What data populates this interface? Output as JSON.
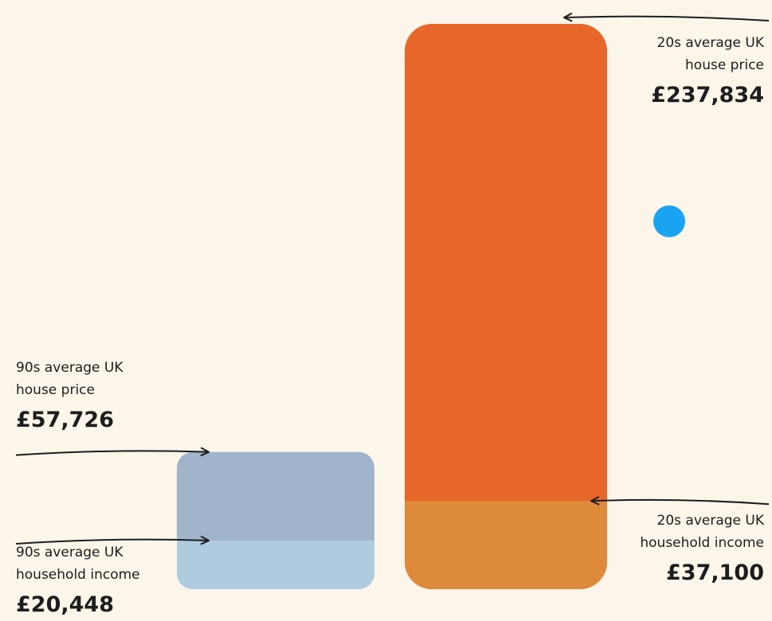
{
  "chart_data": {
    "type": "bar",
    "bars": [
      {
        "label": [
          "90s average UK",
          "house price"
        ],
        "value": 57726,
        "value_label": "£57,726",
        "color": "#a0b4cc",
        "income_label": [
          "90s average UK",
          "household income"
        ],
        "income": 20448,
        "income_value_label": "£20,448",
        "income_color": "#aecbe0"
      },
      {
        "label": [
          "20s average UK",
          "house price"
        ],
        "value": 237834,
        "value_label": "£237,834",
        "color": "#e8672a",
        "income_label": [
          "20s average UK",
          "household income"
        ],
        "income": 37100,
        "income_value_label": "£37,100",
        "income_color": "#de8a3b"
      }
    ]
  }
}
